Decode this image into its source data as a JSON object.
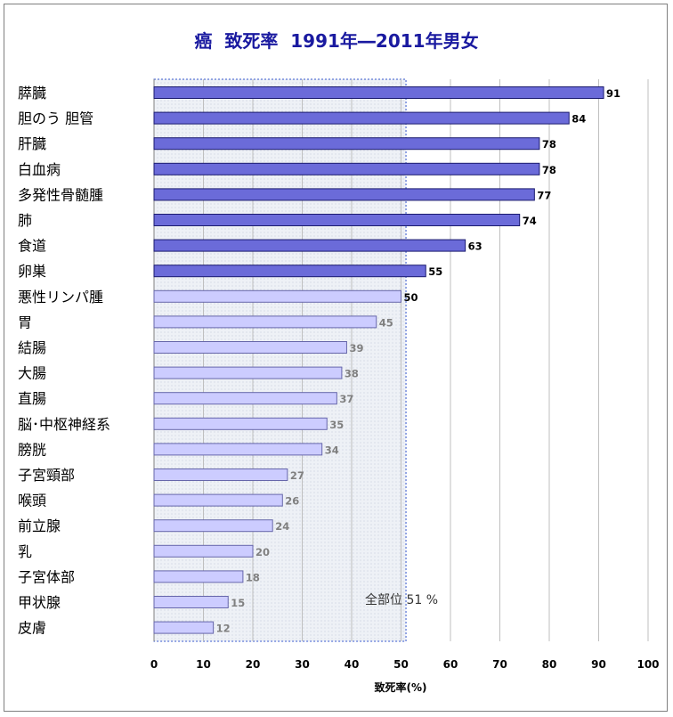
{
  "chart_data": {
    "type": "bar",
    "orientation": "horizontal",
    "title": "癌  致死率  1991年―2011年男女",
    "xlabel": "致死率(%)",
    "xlim": [
      0,
      100
    ],
    "xticks": [
      0,
      10,
      20,
      30,
      40,
      50,
      60,
      70,
      80,
      90,
      100
    ],
    "grid": true,
    "categories": [
      "膵臓",
      "胆のう  胆管",
      "肝臓",
      "白血病",
      "多発性骨髄腫",
      "肺",
      "食道",
      "卵巣",
      "悪性リンパ腫",
      "胃",
      "結腸",
      "大腸",
      "直腸",
      "脳･中枢神経系",
      "膀胱",
      "子宮頸部",
      "喉頭",
      "前立腺",
      "乳",
      "子宮体部",
      "甲状腺",
      "皮膚"
    ],
    "values": [
      91,
      84,
      78,
      78,
      77,
      74,
      63,
      55,
      50,
      45,
      39,
      38,
      37,
      35,
      34,
      27,
      26,
      24,
      20,
      18,
      15,
      12
    ],
    "reference": {
      "label": "全部位 51 %",
      "value": 51
    },
    "colors": {
      "above_reference": "#6b6bd9",
      "below_reference": "#ccccff",
      "bar_border": "#1a1a6e",
      "reference_fill": "#eef1f6",
      "reference_border": "#3355cc",
      "title": "#1a1aa0",
      "label_dark": "#000000",
      "label_light": "#808080"
    }
  }
}
